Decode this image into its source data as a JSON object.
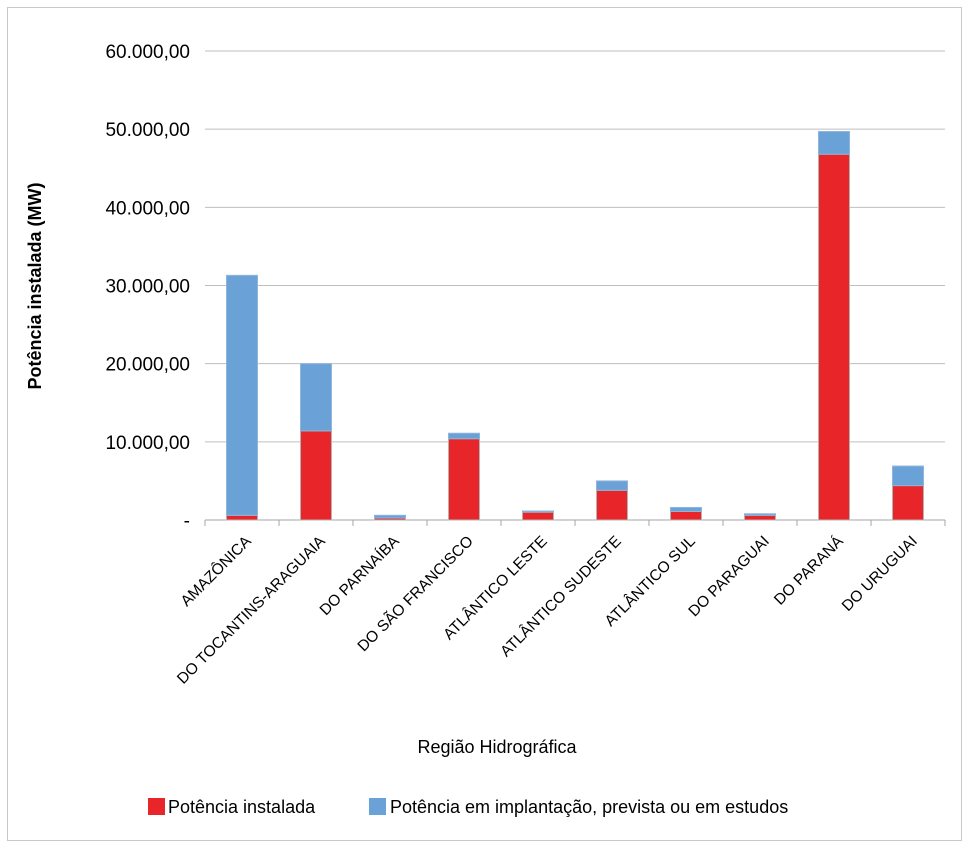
{
  "chart_data": {
    "type": "bar",
    "stacked": true,
    "title": "",
    "xlabel": "Região Hidrográfica",
    "ylabel": "Potência instalada (MW)",
    "ylim": [
      0,
      60000
    ],
    "yticks": [
      0,
      10000,
      20000,
      30000,
      40000,
      50000,
      60000
    ],
    "ytick_labels": [
      "-",
      "10.000,00",
      "20.000,00",
      "30.000,00",
      "40.000,00",
      "50.000,00",
      "60.000,00"
    ],
    "grid": true,
    "legend_position": "bottom",
    "categories": [
      "AMAZÔNICA",
      "DO TOCANTINS-ARAGUAIA",
      "DO PARNAÍBA",
      "DO SÃO FRANCISCO",
      "ATLÂNTICO LESTE",
      "ATLÂNTICO SUDESTE",
      "ATLÂNTICO SUL",
      "DO PARAGUAI",
      "DO PARANÁ",
      "DO URUGUAI"
    ],
    "series": [
      {
        "name": "Potência instalada",
        "color": "#e8262a",
        "values": [
          600,
          11400,
          250,
          10400,
          1000,
          3800,
          1100,
          600,
          46800,
          4400
        ]
      },
      {
        "name": "Potência em implantação, prevista ou em estudos",
        "color": "#6aa2d8",
        "values": [
          30700,
          8600,
          350,
          700,
          150,
          1200,
          500,
          200,
          2900,
          2500
        ]
      }
    ]
  }
}
